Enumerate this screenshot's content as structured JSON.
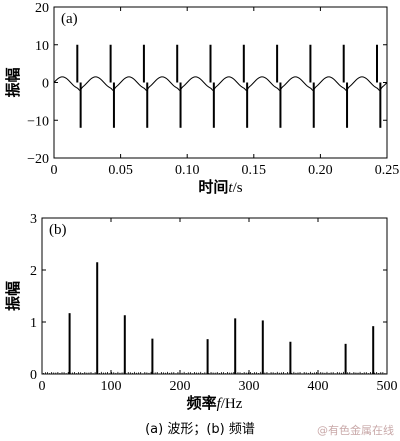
{
  "caption": "(a) 波形；(b) 频谱",
  "watermark": "@有色金属在线",
  "chart_data": [
    {
      "type": "line",
      "panel_label": "(a)",
      "ylabel": "振幅",
      "xlabel_prefix": "时间",
      "xlabel_var": "t",
      "xlabel_unit": "/s",
      "xlim": [
        0,
        0.25
      ],
      "ylim": [
        -20,
        20
      ],
      "x_ticks": [
        0,
        0.05,
        0.1,
        0.15,
        0.2,
        0.25
      ],
      "x_tick_labels": [
        "0",
        "0.05",
        "0.10",
        "0.15",
        "0.20",
        "0.25"
      ],
      "y_ticks": [
        -20,
        -10,
        0,
        10,
        20
      ],
      "y_tick_labels": [
        "−20",
        "−10",
        "0",
        "10",
        "20"
      ],
      "base_wave": {
        "amplitude": 1.5,
        "frequency_hz": 40
      },
      "impulses": [
        {
          "x": 0.0175,
          "high": 10,
          "low": 0
        },
        {
          "x": 0.02,
          "high": 0,
          "low": -12
        },
        {
          "x": 0.0425,
          "high": 10,
          "low": 0
        },
        {
          "x": 0.045,
          "high": 0,
          "low": -12
        },
        {
          "x": 0.0675,
          "high": 10,
          "low": 0
        },
        {
          "x": 0.07,
          "high": 0,
          "low": -12
        },
        {
          "x": 0.0925,
          "high": 10,
          "low": 0
        },
        {
          "x": 0.095,
          "high": 0,
          "low": -12
        },
        {
          "x": 0.1175,
          "high": 10,
          "low": 0
        },
        {
          "x": 0.12,
          "high": 0,
          "low": -12
        },
        {
          "x": 0.1425,
          "high": 10,
          "low": 0
        },
        {
          "x": 0.145,
          "high": 0,
          "low": -12
        },
        {
          "x": 0.1675,
          "high": 10,
          "low": 0
        },
        {
          "x": 0.17,
          "high": 0,
          "low": -12
        },
        {
          "x": 0.1925,
          "high": 10,
          "low": 0
        },
        {
          "x": 0.195,
          "high": 0,
          "low": -12
        },
        {
          "x": 0.2175,
          "high": 10,
          "low": 0
        },
        {
          "x": 0.22,
          "high": 0,
          "low": -12
        },
        {
          "x": 0.2425,
          "high": 10,
          "low": 0
        },
        {
          "x": 0.245,
          "high": 0,
          "low": -12
        }
      ]
    },
    {
      "type": "bar",
      "panel_label": "(b)",
      "ylabel": "振幅",
      "xlabel_prefix": "频率",
      "xlabel_var": "f",
      "xlabel_unit": "/Hz",
      "xlim": [
        0,
        500
      ],
      "ylim": [
        0,
        3
      ],
      "x_ticks": [
        0,
        100,
        200,
        300,
        400,
        500
      ],
      "x_tick_labels": [
        "0",
        "100",
        "200",
        "300",
        "400",
        "500"
      ],
      "y_ticks": [
        0,
        1,
        2,
        3
      ],
      "y_tick_labels": [
        "0",
        "1",
        "2",
        "3"
      ],
      "x": [
        40,
        80,
        120,
        160,
        240,
        280,
        320,
        360,
        440,
        480
      ],
      "values": [
        1.17,
        2.15,
        1.13,
        0.68,
        0.67,
        1.07,
        1.03,
        0.62,
        0.58,
        0.92
      ],
      "baseline_noise": 0.04
    }
  ]
}
